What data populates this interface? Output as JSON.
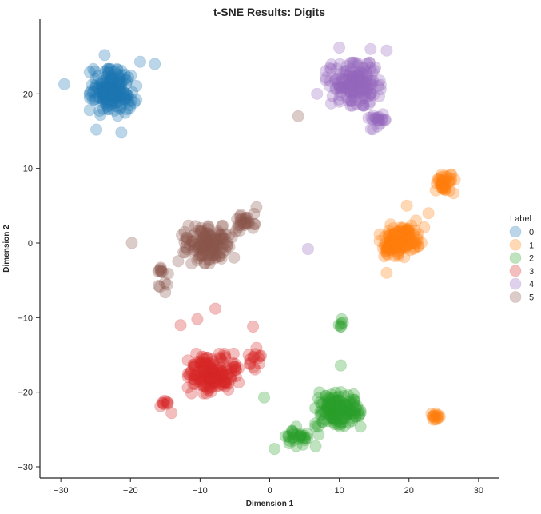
{
  "chart_data": {
    "type": "scatter",
    "title": "t-SNE Results: Digits",
    "xlabel": "Dimension 1",
    "ylabel": "Dimension 2",
    "xlim": [
      -33,
      33
    ],
    "ylim": [
      -31.5,
      30
    ],
    "xticks": [
      -30,
      -20,
      -10,
      0,
      10,
      20,
      30
    ],
    "yticks": [
      -30,
      -20,
      -10,
      0,
      10,
      20
    ],
    "grid": false,
    "legend": {
      "title": "Label",
      "placement": "right"
    },
    "marker_alpha": 0.3,
    "series": [
      {
        "name": "0",
        "color": "#1f77b4",
        "clusters": [
          {
            "center": [
              -22.5,
              20.2
            ],
            "spread": [
              2.9,
              2.7
            ],
            "count": 180
          }
        ],
        "points": [
          [
            -29.5,
            21.3
          ],
          [
            -16.5,
            24.0
          ],
          [
            -21.3,
            14.8
          ],
          [
            -24.9,
            15.2
          ],
          [
            -23.7,
            25.2
          ],
          [
            -18.6,
            24.3
          ]
        ]
      },
      {
        "name": "1",
        "color": "#ff7f0e",
        "clusters": [
          {
            "center": [
              18.8,
              0.3
            ],
            "spread": [
              2.6,
              1.9
            ],
            "count": 130
          },
          {
            "center": [
              25.3,
              7.8
            ],
            "spread": [
              1.5,
              1.2
            ],
            "count": 40
          },
          {
            "center": [
              24.2,
              -23.2
            ],
            "spread": [
              0.9,
              0.5
            ],
            "count": 14
          }
        ],
        "points": [
          [
            22.2,
            2.1
          ],
          [
            21.0,
            3.0
          ],
          [
            22.8,
            4.0
          ],
          [
            16.8,
            -4.0
          ],
          [
            19.7,
            5.0
          ]
        ]
      },
      {
        "name": "2",
        "color": "#2ca02c",
        "clusters": [
          {
            "center": [
              9.8,
              -22.3
            ],
            "spread": [
              2.8,
              2.0
            ],
            "count": 140
          },
          {
            "center": [
              4.5,
              -26.0
            ],
            "spread": [
              2.2,
              1.2
            ],
            "count": 30
          },
          {
            "center": [
              10.3,
              -10.8
            ],
            "spread": [
              0.4,
              0.6
            ],
            "count": 6
          }
        ],
        "points": [
          [
            -0.8,
            -20.7
          ],
          [
            10.2,
            -16.4
          ],
          [
            0.7,
            -27.6
          ]
        ]
      },
      {
        "name": "3",
        "color": "#d62728",
        "clusters": [
          {
            "center": [
              -8.5,
              -17.5
            ],
            "spread": [
              3.5,
              2.3
            ],
            "count": 170
          },
          {
            "center": [
              -2.3,
              -15.3
            ],
            "spread": [
              0.9,
              1.5
            ],
            "count": 14
          },
          {
            "center": [
              -15.0,
              -21.5
            ],
            "spread": [
              0.6,
              0.6
            ],
            "count": 8
          }
        ],
        "points": [
          [
            -7.8,
            -8.8
          ],
          [
            -10.4,
            -10.2
          ],
          [
            -2.4,
            -11.2
          ],
          [
            -12.8,
            -11.0
          ],
          [
            -14.1,
            -22.8
          ]
        ]
      },
      {
        "name": "4",
        "color": "#9467bd",
        "clusters": [
          {
            "center": [
              12.0,
              21.3
            ],
            "spread": [
              3.4,
              2.5
            ],
            "count": 170
          },
          {
            "center": [
              15.5,
              16.3
            ],
            "spread": [
              1.5,
              1.1
            ],
            "count": 20
          }
        ],
        "points": [
          [
            5.5,
            -0.8
          ],
          [
            6.8,
            20.0
          ],
          [
            14.5,
            26.0
          ],
          [
            16.8,
            25.8
          ],
          [
            10.0,
            26.2
          ]
        ]
      },
      {
        "name": "5",
        "color": "#8c564b",
        "clusters": [
          {
            "center": [
              -9.0,
              -0.2
            ],
            "spread": [
              3.6,
              2.2
            ],
            "count": 140
          },
          {
            "center": [
              -3.5,
              2.8
            ],
            "spread": [
              1.4,
              1.0
            ],
            "count": 25
          },
          {
            "center": [
              -15.5,
              -4.5
            ],
            "spread": [
              0.8,
              1.2
            ],
            "count": 12
          }
        ],
        "points": [
          [
            -19.8,
            0.0
          ],
          [
            4.1,
            17.0
          ],
          [
            -1.9,
            4.8
          ],
          [
            -15.0,
            -6.6
          ]
        ]
      }
    ]
  }
}
